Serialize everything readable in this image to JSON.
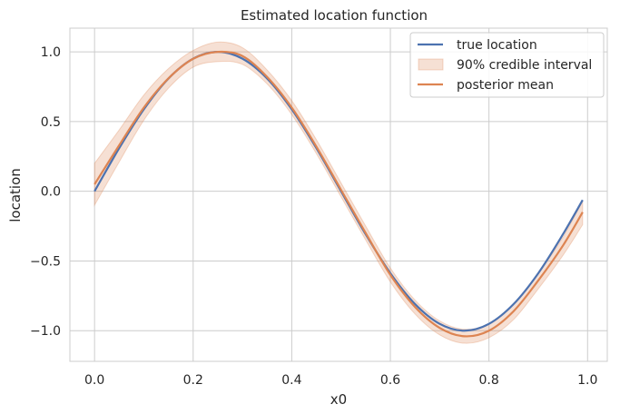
{
  "chart_data": {
    "type": "line",
    "title": "Estimated location function",
    "xlabel": "x0",
    "ylabel": "location",
    "xlim": [
      -0.05,
      1.04
    ],
    "ylim": [
      -1.22,
      1.17
    ],
    "xticks": [
      0.0,
      0.2,
      0.4,
      0.6,
      0.8,
      1.0
    ],
    "xtick_labels": [
      "0.0",
      "0.2",
      "0.4",
      "0.6",
      "0.8",
      "1.0"
    ],
    "yticks": [
      -1.0,
      -0.5,
      0.0,
      0.5,
      1.0
    ],
    "ytick_labels": [
      "−1.0",
      "−0.5",
      "0.0",
      "0.5",
      "1.0"
    ],
    "grid": true,
    "legend_position": "top-right",
    "x": [
      0.0,
      0.05,
      0.1,
      0.15,
      0.2,
      0.25,
      0.3,
      0.35,
      0.4,
      0.45,
      0.5,
      0.55,
      0.6,
      0.65,
      0.7,
      0.75,
      0.8,
      0.85,
      0.9,
      0.95,
      0.99
    ],
    "series": [
      {
        "name": "true location",
        "color": "#4c72b0",
        "values": [
          0.0,
          0.309,
          0.588,
          0.809,
          0.951,
          1.0,
          0.951,
          0.809,
          0.588,
          0.309,
          0.0,
          -0.309,
          -0.588,
          -0.809,
          -0.951,
          -1.0,
          -0.951,
          -0.809,
          -0.588,
          -0.309,
          -0.063
        ]
      },
      {
        "name": "posterior mean",
        "color": "#dd8452",
        "values": [
          0.05,
          0.33,
          0.6,
          0.81,
          0.95,
          1.0,
          0.97,
          0.82,
          0.6,
          0.32,
          0.01,
          -0.3,
          -0.6,
          -0.83,
          -0.98,
          -1.04,
          -1.0,
          -0.86,
          -0.64,
          -0.39,
          -0.15
        ]
      }
    ],
    "band": {
      "name": "90% credible interval",
      "color": "#dd8452",
      "lower": [
        -0.1,
        0.21,
        0.51,
        0.74,
        0.89,
        0.93,
        0.91,
        0.77,
        0.55,
        0.27,
        -0.04,
        -0.35,
        -0.65,
        -0.88,
        -1.03,
        -1.09,
        -1.05,
        -0.92,
        -0.7,
        -0.46,
        -0.24
      ],
      "upper": [
        0.2,
        0.44,
        0.69,
        0.88,
        1.01,
        1.07,
        1.03,
        0.87,
        0.65,
        0.37,
        0.06,
        -0.25,
        -0.55,
        -0.78,
        -0.93,
        -0.99,
        -0.95,
        -0.81,
        -0.59,
        -0.33,
        -0.07
      ]
    },
    "legend": [
      "true location",
      "90% credible interval",
      "posterior mean"
    ]
  }
}
